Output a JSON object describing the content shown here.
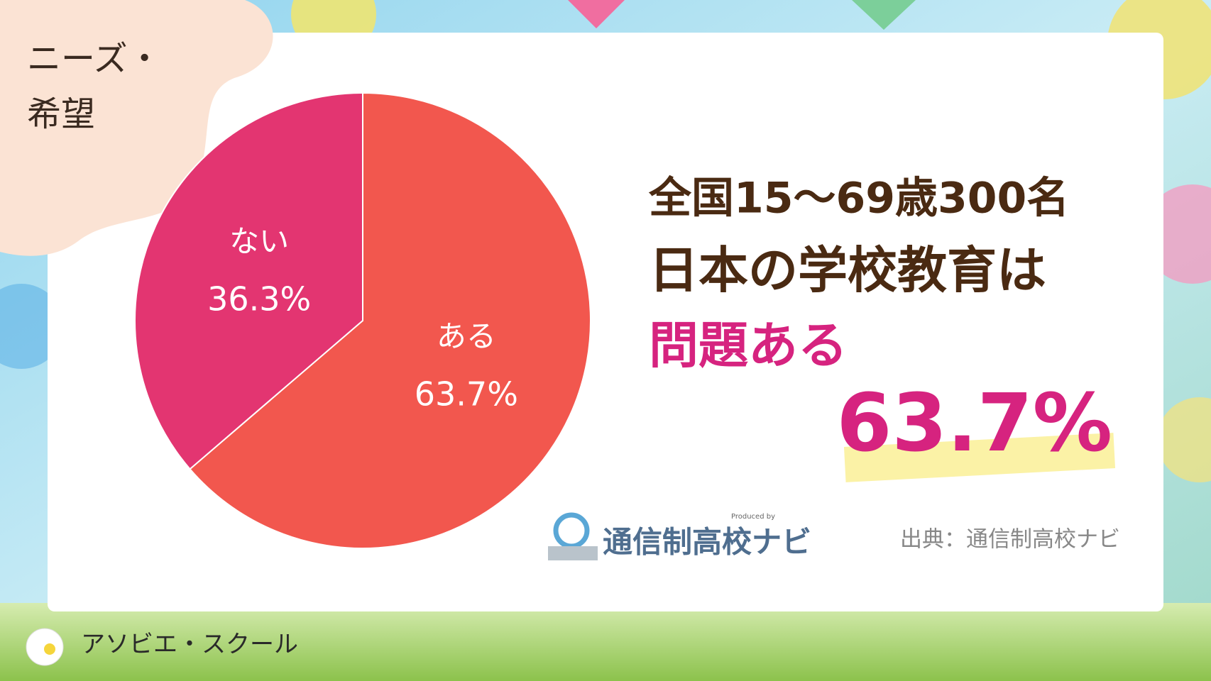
{
  "badge": [
    "ニーズ・",
    "希望"
  ],
  "chart_data": {
    "type": "pie",
    "categories": [
      "ある",
      "ない"
    ],
    "values": [
      63.7,
      36.3
    ],
    "value_labels": [
      "63.7%",
      "36.3%"
    ],
    "colors": [
      "#f2574e",
      "#e33571"
    ]
  },
  "headline": [
    "全国15～69歳300名",
    "日本の学校教育は",
    "問題ある",
    "63.7%"
  ],
  "logo": {
    "name": "通信制高校ナビ",
    "produced_by": "Produced by"
  },
  "source": "出典：通信制高校ナビ",
  "footer": "アソビエ・スクール"
}
